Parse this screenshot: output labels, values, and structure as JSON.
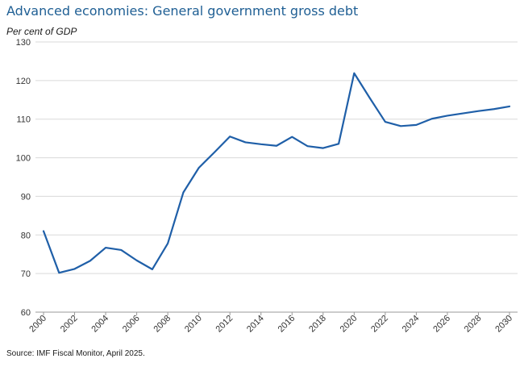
{
  "title": "Advanced economies: General government gross debt",
  "source": "Source: IMF Fiscal Monitor, April 2025.",
  "colors": {
    "line": "#1f5fa8",
    "title": "#1f5f94",
    "grid": "#d9d9d9",
    "axis": "#999999"
  },
  "chart_data": {
    "type": "line",
    "title": "Advanced economies: General government gross debt",
    "ylabel": "Per cent of GDP",
    "xlabel": "",
    "ylim": [
      60,
      130
    ],
    "xlim": [
      2000,
      2030
    ],
    "yticks": [
      "60",
      "70",
      "80",
      "90",
      "100",
      "110",
      "120",
      "130"
    ],
    "xticks": [
      "2000",
      "2002",
      "2004",
      "2006",
      "2008",
      "2010",
      "2012",
      "2014",
      "2016",
      "2018",
      "2020",
      "2022",
      "2024",
      "2026",
      "2028",
      "2030"
    ],
    "grid": "horizontal",
    "legend": "none",
    "series": [
      {
        "x": [
          2000,
          2001,
          2002,
          2003,
          2004,
          2005,
          2006,
          2007,
          2008,
          2009,
          2010,
          2011,
          2012,
          2013,
          2014,
          2015,
          2016,
          2017,
          2018,
          2019,
          2020,
          2021,
          2022,
          2023,
          2024,
          2025,
          2026,
          2027,
          2028,
          2029,
          2030
        ],
        "values": [
          81.0,
          70.2,
          71.2,
          73.3,
          76.7,
          76.1,
          73.4,
          71.1,
          77.8,
          91.0,
          97.4,
          101.4,
          105.5,
          104.0,
          103.5,
          103.1,
          105.4,
          103.0,
          102.5,
          103.6,
          121.9,
          115.5,
          109.3,
          108.2,
          108.5,
          110.1,
          110.9,
          111.5,
          112.1,
          112.6,
          113.3
        ]
      }
    ]
  }
}
